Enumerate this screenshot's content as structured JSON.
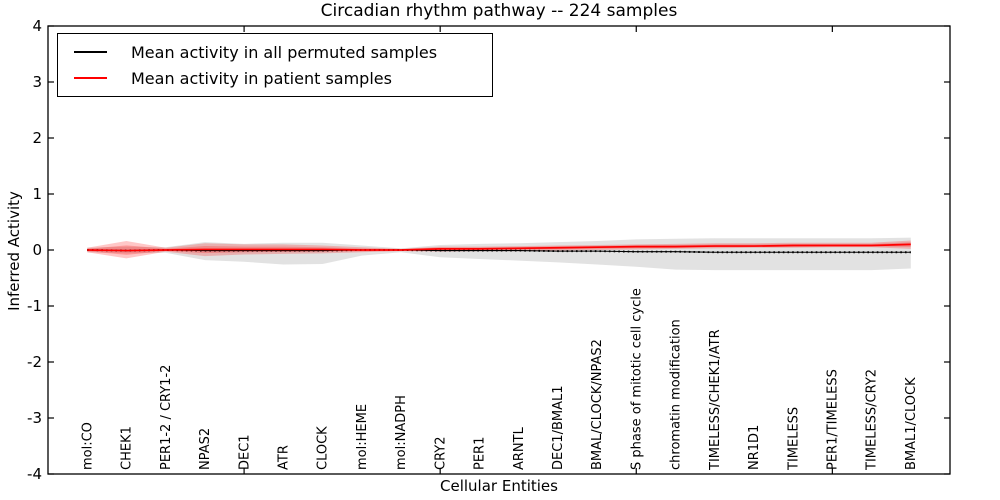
{
  "chart_data": {
    "type": "line",
    "title": "Circadian rhythm pathway -- 224 samples",
    "xlabel": "Cellular Entities",
    "ylabel": "Inferred Activity",
    "ylim": [
      -4,
      4
    ],
    "yticks": [
      -4,
      -3,
      -2,
      -1,
      0,
      1,
      2,
      3,
      4
    ],
    "x_major_ticks": [
      5,
      10,
      15,
      20
    ],
    "grid": false,
    "legend_position": "upper left",
    "categories": [
      "mol:CO",
      "CHEK1",
      "PER1-2 / CRY1-2",
      "NPAS2",
      "DEC1",
      "ATR",
      "CLOCK",
      "mol:HEME",
      "mol:NADPH",
      "CRY2",
      "PER1",
      "ARNTL",
      "DEC1/BMAL1",
      "BMAL/CLOCK/NPAS2",
      "S phase of mitotic cell cycle",
      "chromatin modification",
      "TIMELESS/CHEK1/ATR",
      "NR1D1",
      "TIMELESS",
      "PER1/TIMELESS",
      "TIMELESS/CRY2",
      "BMAL1/CLOCK"
    ],
    "series": [
      {
        "name": "Mean activity in all permuted samples",
        "color": "#000000",
        "style": "solid-with-dots",
        "values": [
          0,
          -0.01,
          0,
          -0.01,
          -0.01,
          -0.01,
          -0.01,
          0,
          0,
          -0.01,
          -0.01,
          -0.01,
          -0.02,
          -0.02,
          -0.03,
          -0.03,
          -0.04,
          -0.04,
          -0.04,
          -0.04,
          -0.04,
          -0.04
        ]
      },
      {
        "name": "Mean activity in patient samples",
        "color": "#ff0000",
        "style": "solid",
        "values": [
          0,
          -0.01,
          0,
          0.01,
          0.01,
          0.01,
          0.01,
          0,
          0,
          0.02,
          0.02,
          0.03,
          0.04,
          0.05,
          0.06,
          0.06,
          0.07,
          0.07,
          0.08,
          0.08,
          0.08,
          0.1
        ]
      }
    ],
    "bands": [
      {
        "name": "permuted-sample-range",
        "color": "#bebebe",
        "opacity": 0.45,
        "upper": [
          0.04,
          0.06,
          0.05,
          0.14,
          0.11,
          0.13,
          0.13,
          0.08,
          0.03,
          0.09,
          0.11,
          0.12,
          0.14,
          0.16,
          0.19,
          0.2,
          0.21,
          0.21,
          0.21,
          0.21,
          0.21,
          0.22
        ],
        "lower": [
          -0.04,
          -0.06,
          -0.05,
          -0.18,
          -0.21,
          -0.26,
          -0.25,
          -0.1,
          -0.04,
          -0.13,
          -0.16,
          -0.19,
          -0.22,
          -0.26,
          -0.3,
          -0.35,
          -0.36,
          -0.36,
          -0.36,
          -0.36,
          -0.36,
          -0.33
        ]
      },
      {
        "name": "patient-sample-range",
        "color": "#ff0000",
        "opacity": 0.22,
        "upper": [
          0.04,
          0.16,
          0.04,
          0.12,
          0.1,
          0.1,
          0.08,
          0.05,
          0.02,
          0.06,
          0.06,
          0.07,
          0.08,
          0.09,
          0.1,
          0.11,
          0.12,
          0.12,
          0.13,
          0.13,
          0.13,
          0.17
        ],
        "lower": [
          -0.04,
          -0.15,
          -0.03,
          -0.11,
          -0.08,
          -0.07,
          -0.06,
          -0.04,
          -0.02,
          -0.03,
          -0.02,
          -0.02,
          -0.01,
          0,
          0.01,
          0.02,
          0.03,
          0.04,
          0.04,
          0.05,
          0.05,
          0.02
        ]
      }
    ]
  }
}
